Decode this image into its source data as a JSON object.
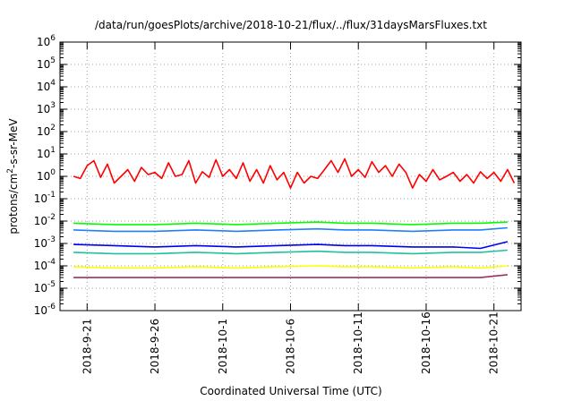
{
  "chart_data": {
    "type": "line",
    "title": "/data/run/goesPlots/archive/2018-10-21/flux/../flux/31daysMarsFluxes.txt",
    "xlabel": "Coordinated Universal Time (UTC)",
    "ylabel": "protons/cm2-s-sr-MeV",
    "ylabel_parts": {
      "pre": "protons/cm",
      "sup": "2",
      "post": "-s-sr-MeV"
    },
    "yscale": "log",
    "ylim": [
      1e-06,
      1000000
    ],
    "xlim": [
      "2018-09-19",
      "2018-10-23"
    ],
    "grid": true,
    "legend": "none",
    "x_ticks": [
      "2018-09-21",
      "2018-09-26",
      "2018-10-01",
      "2018-10-06",
      "2018-10-11",
      "2018-10-16",
      "2018-10-21"
    ],
    "x_tick_labels": [
      "2018-9-21",
      "2018-9-26",
      "2018-10-1",
      "2018-10-6",
      "2018-10-11",
      "2018-10-16",
      "2018-10-21"
    ],
    "y_ticks": [
      {
        "base": "10",
        "exp": "-6"
      },
      {
        "base": "10",
        "exp": "-5"
      },
      {
        "base": "10",
        "exp": "-4"
      },
      {
        "base": "10",
        "exp": "-3"
      },
      {
        "base": "10",
        "exp": "-2"
      },
      {
        "base": "10",
        "exp": "-1"
      },
      {
        "base": "10",
        "exp": "0"
      },
      {
        "base": "10",
        "exp": "1"
      },
      {
        "base": "10",
        "exp": "2"
      },
      {
        "base": "10",
        "exp": "3"
      },
      {
        "base": "10",
        "exp": "4"
      },
      {
        "base": "10",
        "exp": "5"
      },
      {
        "base": "10",
        "exp": "6"
      }
    ],
    "series": [
      {
        "color": "#ff0000",
        "x": [
          "2018-09-20",
          "2018-09-20T12:00",
          "2018-09-21",
          "2018-09-21T12:00",
          "2018-09-22",
          "2018-09-22T12:00",
          "2018-09-23",
          "2018-09-23T12:00",
          "2018-09-24",
          "2018-09-24T12:00",
          "2018-09-25",
          "2018-09-25T12:00",
          "2018-09-26",
          "2018-09-26T12:00",
          "2018-09-27",
          "2018-09-27T12:00",
          "2018-09-28",
          "2018-09-28T12:00",
          "2018-09-29",
          "2018-09-29T12:00",
          "2018-09-30",
          "2018-09-30T12:00",
          "2018-10-01",
          "2018-10-01T12:00",
          "2018-10-02",
          "2018-10-02T12:00",
          "2018-10-03",
          "2018-10-03T12:00",
          "2018-10-04",
          "2018-10-04T12:00",
          "2018-10-05",
          "2018-10-05T12:00",
          "2018-10-06",
          "2018-10-06T12:00",
          "2018-10-07",
          "2018-10-07T12:00",
          "2018-10-08",
          "2018-10-08T12:00",
          "2018-10-09",
          "2018-10-09T12:00",
          "2018-10-10",
          "2018-10-10T12:00",
          "2018-10-11",
          "2018-10-11T12:00",
          "2018-10-12",
          "2018-10-12T12:00",
          "2018-10-13",
          "2018-10-13T12:00",
          "2018-10-14",
          "2018-10-14T12:00",
          "2018-10-15",
          "2018-10-15T12:00",
          "2018-10-16",
          "2018-10-16T12:00",
          "2018-10-17",
          "2018-10-17T12:00",
          "2018-10-18",
          "2018-10-18T12:00",
          "2018-10-19",
          "2018-10-19T12:00",
          "2018-10-20",
          "2018-10-20T12:00",
          "2018-10-21",
          "2018-10-21T12:00",
          "2018-10-22",
          "2018-10-22T12:00"
        ],
        "values": [
          1.0,
          0.8,
          3.0,
          5.0,
          0.9,
          3.5,
          0.5,
          1.0,
          2.0,
          0.6,
          2.5,
          1.2,
          1.5,
          0.8,
          4.0,
          1.0,
          1.2,
          5.0,
          0.5,
          1.6,
          0.9,
          5.5,
          1.0,
          2.0,
          0.8,
          4.0,
          0.6,
          2.0,
          0.5,
          3.0,
          0.7,
          1.5,
          0.3,
          1.5,
          0.5,
          1.0,
          0.8,
          2.0,
          5.0,
          1.5,
          6.0,
          1.0,
          2.0,
          0.9,
          4.5,
          1.5,
          3.0,
          1.0,
          3.5,
          1.5,
          0.3,
          1.2,
          0.6,
          2.0,
          0.7,
          1.0,
          1.5,
          0.6,
          1.2,
          0.5,
          1.6,
          0.8,
          1.5,
          0.6,
          2.0,
          0.5
        ]
      },
      {
        "color": "#00ff00",
        "x": [
          "2018-09-20",
          "2018-09-23",
          "2018-09-26",
          "2018-09-29",
          "2018-10-02",
          "2018-10-05",
          "2018-10-08",
          "2018-10-10",
          "2018-10-12",
          "2018-10-15",
          "2018-10-18",
          "2018-10-20",
          "2018-10-22"
        ],
        "values": [
          0.008,
          0.007,
          0.007,
          0.008,
          0.007,
          0.008,
          0.009,
          0.008,
          0.008,
          0.007,
          0.008,
          0.008,
          0.009
        ]
      },
      {
        "color": "#1f7fff",
        "x": [
          "2018-09-20",
          "2018-09-23",
          "2018-09-26",
          "2018-09-29",
          "2018-10-02",
          "2018-10-05",
          "2018-10-08",
          "2018-10-10",
          "2018-10-12",
          "2018-10-15",
          "2018-10-18",
          "2018-10-20",
          "2018-10-22"
        ],
        "values": [
          0.004,
          0.0035,
          0.0035,
          0.004,
          0.0035,
          0.004,
          0.0045,
          0.004,
          0.004,
          0.0035,
          0.004,
          0.004,
          0.005
        ]
      },
      {
        "color": "#0000ee",
        "x": [
          "2018-09-20",
          "2018-09-23",
          "2018-09-26",
          "2018-09-29",
          "2018-10-02",
          "2018-10-05",
          "2018-10-08",
          "2018-10-10",
          "2018-10-12",
          "2018-10-15",
          "2018-10-18",
          "2018-10-20",
          "2018-10-22"
        ],
        "values": [
          0.0009,
          0.0008,
          0.0007,
          0.0008,
          0.0007,
          0.0008,
          0.0009,
          0.0008,
          0.0008,
          0.0007,
          0.0007,
          0.0006,
          0.0012
        ]
      },
      {
        "color": "#20c0a0",
        "x": [
          "2018-09-20",
          "2018-09-23",
          "2018-09-26",
          "2018-09-29",
          "2018-10-02",
          "2018-10-05",
          "2018-10-08",
          "2018-10-10",
          "2018-10-12",
          "2018-10-15",
          "2018-10-18",
          "2018-10-20",
          "2018-10-22"
        ],
        "values": [
          0.0004,
          0.00035,
          0.00035,
          0.0004,
          0.00035,
          0.0004,
          0.00045,
          0.0004,
          0.0004,
          0.00035,
          0.0004,
          0.0004,
          0.0005
        ]
      },
      {
        "color": "#ffff00",
        "x": [
          "2018-09-20",
          "2018-09-23",
          "2018-09-26",
          "2018-09-29",
          "2018-10-02",
          "2018-10-05",
          "2018-10-08",
          "2018-10-10",
          "2018-10-12",
          "2018-10-15",
          "2018-10-18",
          "2018-10-20",
          "2018-10-22"
        ],
        "values": [
          9e-05,
          8e-05,
          8e-05,
          9e-05,
          8e-05,
          9e-05,
          0.0001,
          9e-05,
          9e-05,
          8e-05,
          9e-05,
          8e-05,
          0.0001
        ]
      },
      {
        "color": "#9b3060",
        "x": [
          "2018-09-20",
          "2018-09-23",
          "2018-09-26",
          "2018-09-29",
          "2018-10-02",
          "2018-10-05",
          "2018-10-08",
          "2018-10-10",
          "2018-10-12",
          "2018-10-15",
          "2018-10-18",
          "2018-10-20",
          "2018-10-22"
        ],
        "values": [
          3e-05,
          3e-05,
          3e-05,
          3e-05,
          3e-05,
          3e-05,
          3e-05,
          3e-05,
          3e-05,
          3e-05,
          3e-05,
          3e-05,
          4e-05
        ]
      }
    ]
  }
}
